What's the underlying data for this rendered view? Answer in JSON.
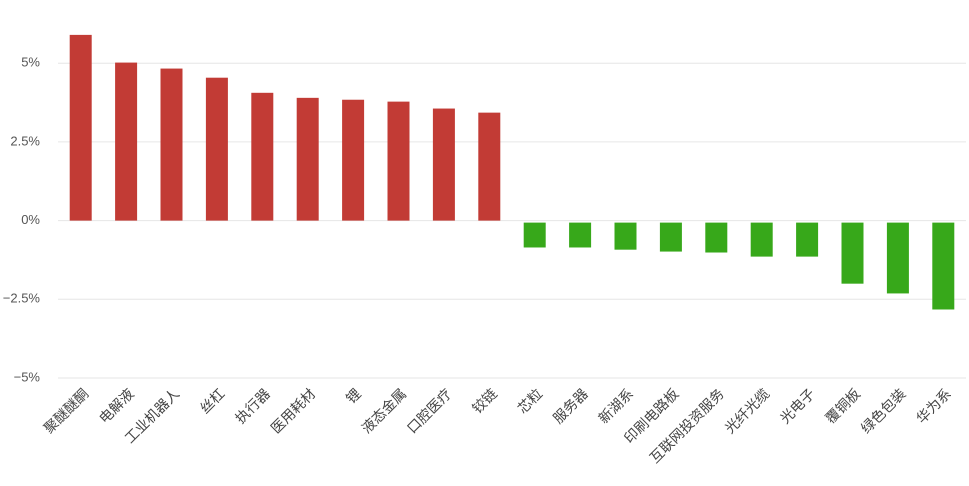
{
  "chart_data": {
    "type": "bar",
    "categories": [
      "聚醚醚酮",
      "电解液",
      "工业机器人",
      "丝杠",
      "执行器",
      "医用耗材",
      "锂",
      "液态金属",
      "口腔医疗",
      "铰链",
      "芯粒",
      "服务器",
      "新湖系",
      "印刷电路板",
      "互联网投资服务",
      "光纤光缆",
      "光电子",
      "覆铜板",
      "绿色包装",
      "华为系"
    ],
    "values": [
      5.9,
      5.02,
      4.83,
      4.54,
      4.06,
      3.9,
      3.84,
      3.78,
      3.56,
      3.43,
      -0.79,
      -0.79,
      -0.86,
      -0.92,
      -0.95,
      -1.08,
      -1.08,
      -1.94,
      -2.25,
      -2.76
    ],
    "color": "#c23b35",
    "negative_color": "#37a81a",
    "ylim": [
      -5,
      6.5
    ],
    "yticks": [
      {
        "value": -5,
        "label": "−5%"
      },
      {
        "value": -2.5,
        "label": "−2.5%"
      },
      {
        "value": 0,
        "label": "0%"
      },
      {
        "value": 2.5,
        "label": "2.5%"
      },
      {
        "value": 5,
        "label": "5%"
      }
    ],
    "grid": true
  }
}
